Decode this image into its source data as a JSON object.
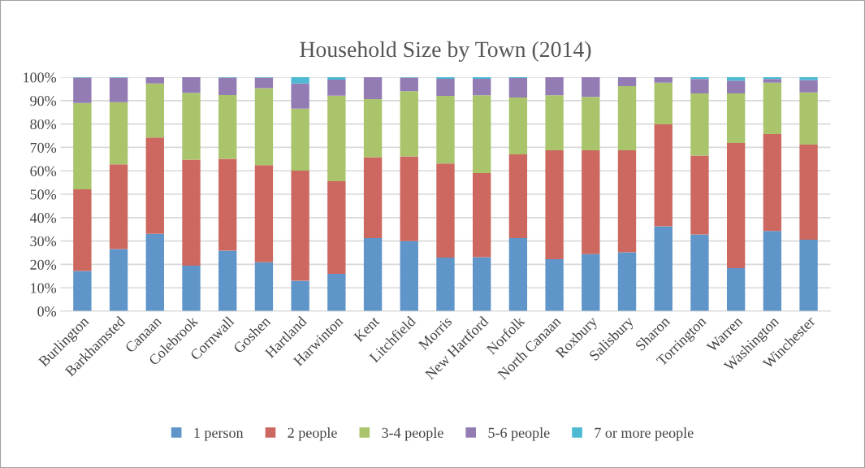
{
  "chart_data": {
    "type": "bar",
    "title": "Household Size by Town (2014)",
    "stacked": true,
    "categories": [
      "Burlington",
      "Barkhamsted",
      "Canaan",
      "Colebrook",
      "Cornwall",
      "Goshen",
      "Hartland",
      "Harwinton",
      "Kent",
      "Litchfield",
      "Morris",
      "New Hartford",
      "Norfolk",
      "North Canaan",
      "Roxbury",
      "Salisbury",
      "Sharon",
      "Torrington",
      "Warren",
      "Washington",
      "Winchester"
    ],
    "series": [
      {
        "name": "1 person",
        "color": "#5f95c9",
        "values": [
          17.2,
          26.6,
          33.1,
          19.5,
          25.9,
          20.9,
          13.0,
          16.0,
          31.3,
          30.0,
          22.9,
          23.1,
          31.3,
          22.2,
          24.4,
          25.2,
          36.3,
          32.8,
          18.4,
          34.3,
          30.6
        ]
      },
      {
        "name": "2 people",
        "color": "#cd6860",
        "values": [
          34.9,
          36.2,
          41.1,
          45.3,
          39.2,
          41.5,
          47.1,
          39.6,
          34.5,
          36.2,
          40.2,
          35.9,
          35.7,
          46.6,
          44.4,
          43.6,
          43.6,
          33.7,
          53.5,
          41.4,
          40.6
        ]
      },
      {
        "name": "3-4 people",
        "color": "#a9c46b",
        "values": [
          36.9,
          26.5,
          23.1,
          28.5,
          27.3,
          32.9,
          26.5,
          36.5,
          24.8,
          27.8,
          28.9,
          33.3,
          24.3,
          23.5,
          22.8,
          27.4,
          17.8,
          26.6,
          21.2,
          22.0,
          22.3
        ]
      },
      {
        "name": "5-6 people",
        "color": "#937cb4",
        "values": [
          10.8,
          10.5,
          2.7,
          6.7,
          7.4,
          4.5,
          10.7,
          6.9,
          9.4,
          5.8,
          7.3,
          7.0,
          8.4,
          7.7,
          8.4,
          3.8,
          2.3,
          6.1,
          5.4,
          1.5,
          5.3
        ]
      },
      {
        "name": "7 or more people",
        "color": "#4db9d3",
        "values": [
          0.2,
          0.2,
          0,
          0,
          0.2,
          0.2,
          2.7,
          1.0,
          0,
          0.2,
          0.7,
          0.7,
          0.3,
          0,
          0,
          0,
          0,
          0.8,
          1.5,
          0.8,
          1.2
        ]
      }
    ],
    "ylim": [
      0,
      100
    ],
    "yticks": [
      {
        "value": 0,
        "label": "0%"
      },
      {
        "value": 10,
        "label": "10%"
      },
      {
        "value": 20,
        "label": "20%"
      },
      {
        "value": 30,
        "label": "30%"
      },
      {
        "value": 40,
        "label": "40%"
      },
      {
        "value": 50,
        "label": "50%"
      },
      {
        "value": 60,
        "label": "60%"
      },
      {
        "value": 70,
        "label": "70%"
      },
      {
        "value": 80,
        "label": "80%"
      },
      {
        "value": 90,
        "label": "90%"
      },
      {
        "value": 100,
        "label": "100%"
      }
    ],
    "grid": "y",
    "legend": "bottom"
  }
}
